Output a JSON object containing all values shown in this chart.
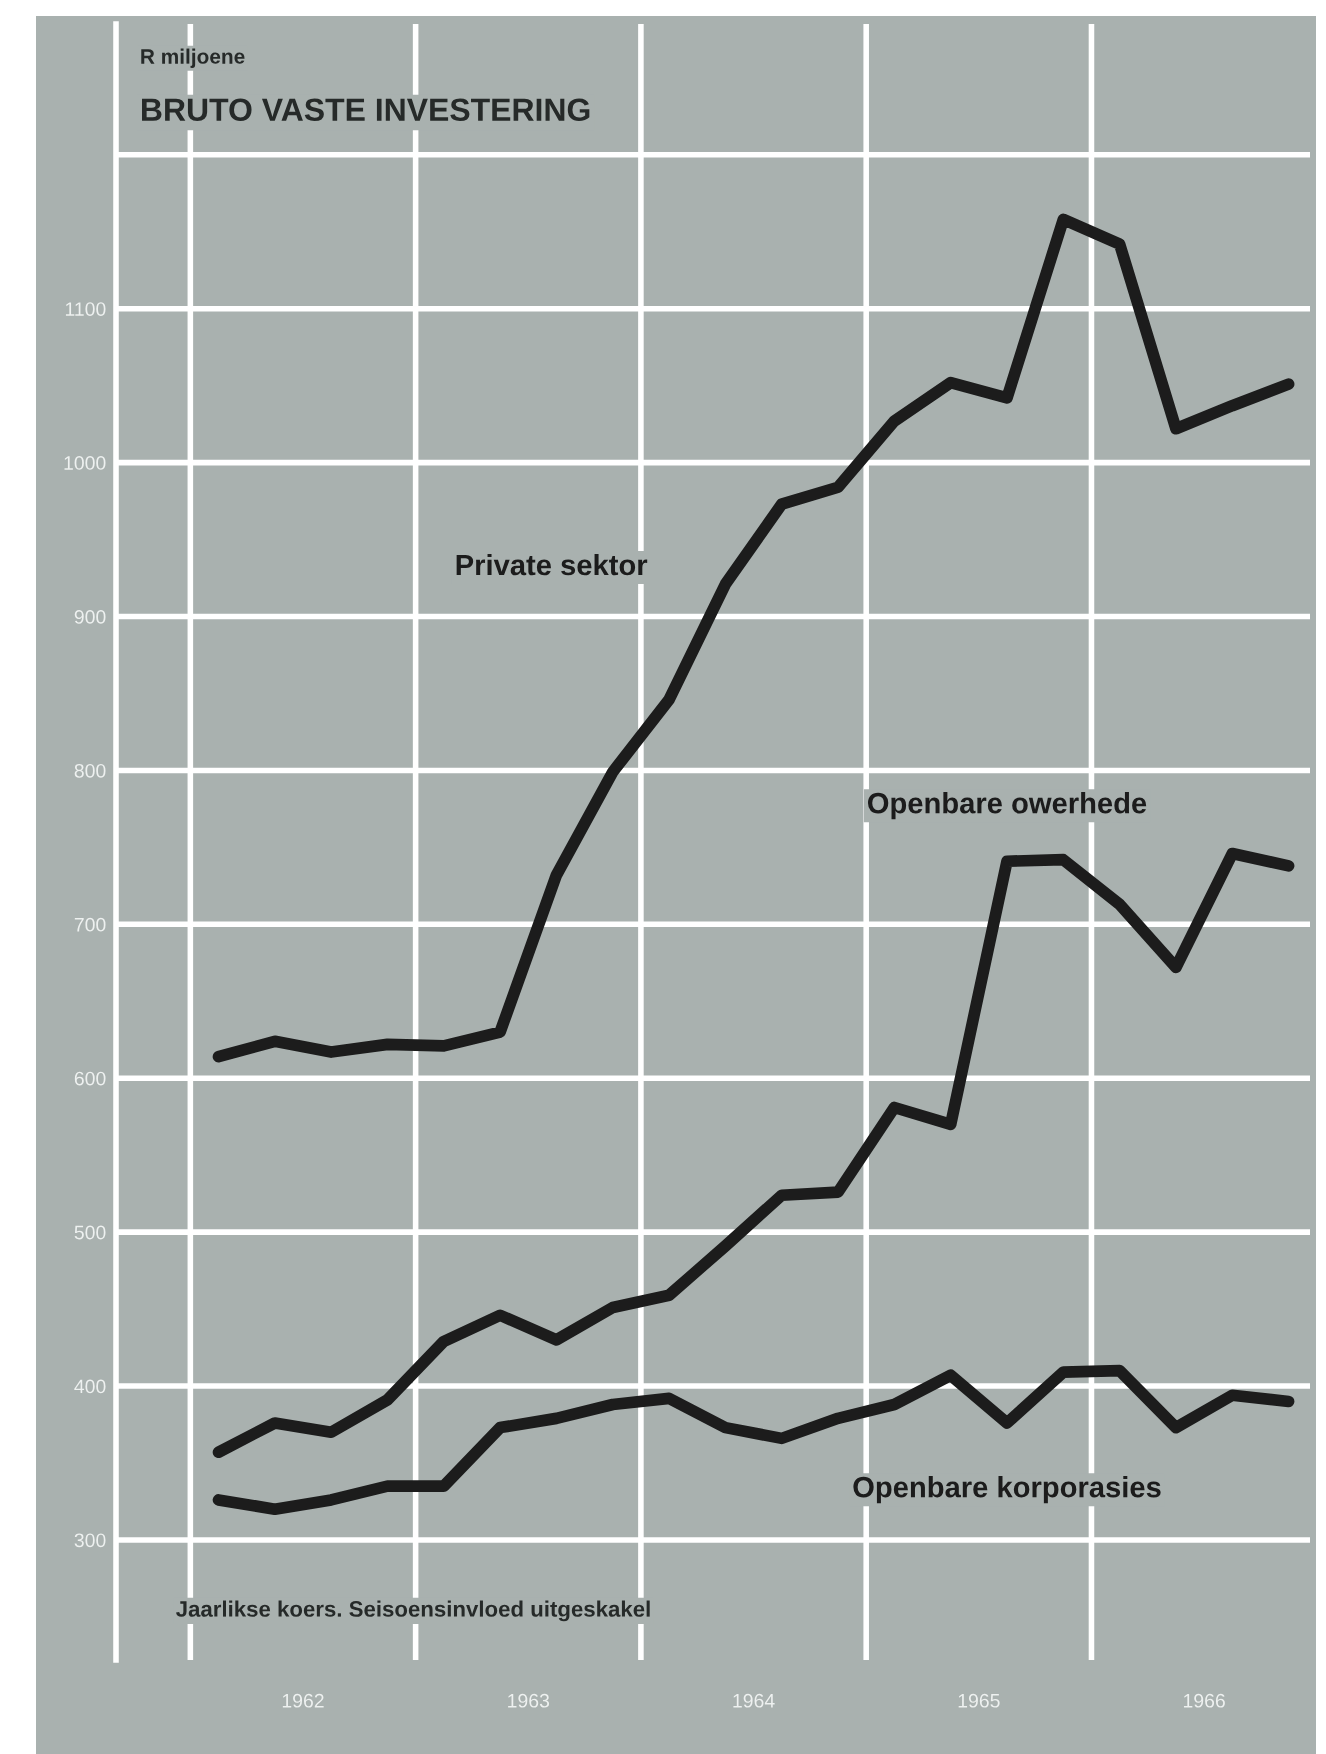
{
  "chart_data": {
    "type": "line",
    "title": "BRUTO VASTE INVESTERING",
    "ylabel": "R miljoene",
    "annotations": [
      "Jaarlikse koers. Seisoensinvloed uitgeskakel"
    ],
    "x": [
      1962.125,
      1962.375,
      1962.625,
      1962.875,
      1963.125,
      1963.375,
      1963.625,
      1963.875,
      1964.125,
      1964.375,
      1964.625,
      1964.875,
      1965.125,
      1965.375,
      1965.625,
      1965.875,
      1966.125,
      1966.375,
      1966.625,
      1966.875
    ],
    "series": [
      {
        "name": "Private sektor",
        "color": "#1c1c1c",
        "values": [
          614,
          624,
          617,
          622,
          621,
          630,
          732,
          799,
          846,
          921,
          973,
          984,
          1027,
          1052,
          1042,
          1158,
          1142,
          1022,
          1037,
          1051
        ]
      },
      {
        "name": "Openbare owerhede",
        "color": "#1c1c1c",
        "values": [
          357,
          376,
          370,
          391,
          429,
          446,
          430,
          451,
          459,
          491,
          524,
          526,
          581,
          570,
          741,
          742,
          713,
          672,
          746,
          738
        ]
      },
      {
        "name": "Openbare korporasies",
        "color": "#1c1c1c",
        "values": [
          326,
          320,
          326,
          335,
          335,
          373,
          379,
          388,
          392,
          373,
          366,
          379,
          388,
          407,
          376,
          409,
          410,
          373,
          394,
          390
        ]
      }
    ],
    "xlim": [
      1961.67,
      1966.97
    ],
    "xticks": [
      {
        "value": 1962,
        "label": null
      },
      {
        "value": 1962.5,
        "label": "1962"
      },
      {
        "value": 1963,
        "label": null
      },
      {
        "value": 1963.5,
        "label": "1963"
      },
      {
        "value": 1964,
        "label": null
      },
      {
        "value": 1964.5,
        "label": "1964"
      },
      {
        "value": 1965,
        "label": null
      },
      {
        "value": 1965.5,
        "label": "1965"
      },
      {
        "value": 1966,
        "label": null
      },
      {
        "value": 1966.5,
        "label": "1966"
      }
    ],
    "ylim": [
      222,
      1285
    ],
    "yticks": [
      300,
      400,
      500,
      600,
      700,
      800,
      900,
      1000,
      1100,
      {
        "value": 1200,
        "label": null
      }
    ],
    "grid": true,
    "legend": false,
    "marker": "none",
    "line_style": "solid"
  }
}
